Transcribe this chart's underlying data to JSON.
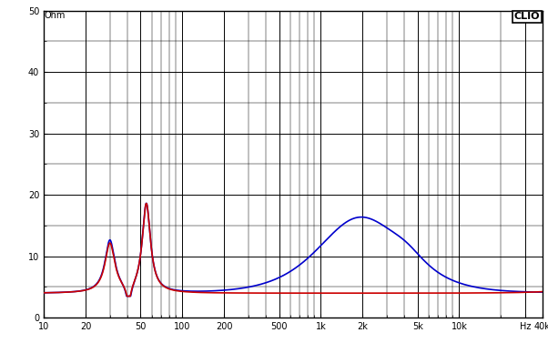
{
  "title": "CLIO",
  "ylabel": "Ohm",
  "background_color": "#ffffff",
  "grid_color": "#000000",
  "plot_bg_color": "#ffffff",
  "blue_color": "#0000cc",
  "red_color": "#cc0000",
  "ylim": [
    0,
    50
  ],
  "xlim": [
    10,
    40000
  ],
  "yticks": [
    0,
    10,
    20,
    30,
    40,
    50
  ],
  "ytick_labels": [
    "0",
    "10",
    "20",
    "30",
    "40",
    "50"
  ],
  "extra_yticks": [
    5,
    15,
    25,
    35,
    45
  ],
  "xtick_labels": [
    "10",
    "20",
    "50",
    "100",
    "200",
    "500",
    "1k",
    "2k",
    "5k",
    "10k",
    "Hz",
    "40k"
  ],
  "xtick_positions": [
    10,
    20,
    50,
    100,
    200,
    500,
    1000,
    2000,
    5000,
    10000,
    30000,
    40000
  ],
  "figsize": [
    6.02,
    3.88
  ],
  "dpi": 100
}
